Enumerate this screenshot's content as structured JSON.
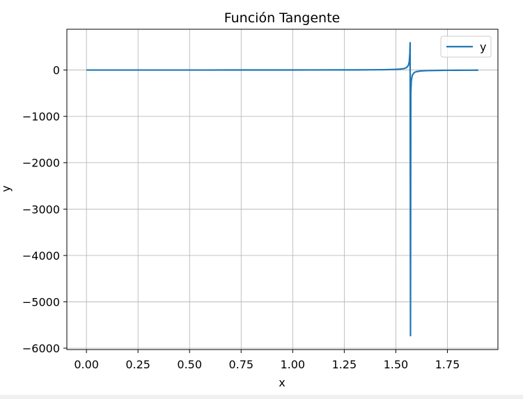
{
  "chart_data": {
    "type": "line",
    "title": "Función Tangente",
    "xlabel": "x",
    "ylabel": "y",
    "xlim": [
      -0.095,
      1.995
    ],
    "ylim": [
      -6030,
      880
    ],
    "xticks": [
      0.0,
      0.25,
      0.5,
      0.75,
      1.0,
      1.25,
      1.5,
      1.75
    ],
    "xtick_labels": [
      "0.00",
      "0.25",
      "0.50",
      "0.75",
      "1.00",
      "1.25",
      "1.50",
      "1.75"
    ],
    "yticks": [
      0,
      -1000,
      -2000,
      -3000,
      -4000,
      -5000,
      -6000
    ],
    "ytick_labels": [
      "0",
      "−1000",
      "−2000",
      "−3000",
      "−4000",
      "−5000",
      "−6000"
    ],
    "grid": true,
    "legend": {
      "position": "top-right",
      "entries": [
        "y"
      ]
    },
    "series": [
      {
        "name": "y",
        "color": "#1f77b4",
        "x_range": [
          0.0,
          1.9
        ],
        "points": [
          [
            0.0,
            0.0
          ],
          [
            0.1,
            0.1
          ],
          [
            0.2,
            0.2
          ],
          [
            0.3,
            0.31
          ],
          [
            0.4,
            0.42
          ],
          [
            0.5,
            0.55
          ],
          [
            0.6,
            0.68
          ],
          [
            0.7,
            0.84
          ],
          [
            0.8,
            1.03
          ],
          [
            0.9,
            1.26
          ],
          [
            1.0,
            1.56
          ],
          [
            1.1,
            1.96
          ],
          [
            1.2,
            2.57
          ],
          [
            1.3,
            3.6
          ],
          [
            1.4,
            5.8
          ],
          [
            1.45,
            8.2
          ],
          [
            1.5,
            14.1
          ],
          [
            1.52,
            20.0
          ],
          [
            1.54,
            32.5
          ],
          [
            1.55,
            48.1
          ],
          [
            1.56,
            92.6
          ],
          [
            1.565,
            172.5
          ],
          [
            1.568,
            357.6
          ],
          [
            1.5693,
            590.0
          ],
          [
            1.5711,
            -5730.0
          ],
          [
            1.5725,
            -500.0
          ],
          [
            1.575,
            -230.0
          ],
          [
            1.58,
            -108.6
          ],
          [
            1.59,
            -51.3
          ],
          [
            1.6,
            -34.2
          ],
          [
            1.62,
            -20.0
          ],
          [
            1.65,
            -12.6
          ],
          [
            1.7,
            -7.7
          ],
          [
            1.75,
            -5.5
          ],
          [
            1.8,
            -4.3
          ],
          [
            1.85,
            -3.5
          ],
          [
            1.9,
            -3.0
          ]
        ]
      }
    ]
  }
}
